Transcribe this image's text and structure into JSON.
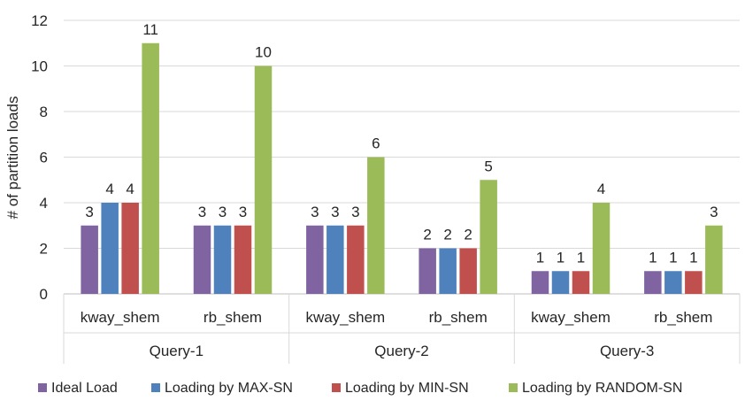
{
  "chart_data": {
    "type": "bar",
    "title": "",
    "ylabel": "# of partition loads",
    "xlabel": "",
    "ylim": [
      0,
      12
    ],
    "yticks": [
      0,
      2,
      4,
      6,
      8,
      10,
      12
    ],
    "grid": true,
    "legend_position": "bottom",
    "groups": [
      {
        "name": "Query-1",
        "categories": [
          "kway_shem",
          "rb_shem"
        ]
      },
      {
        "name": "Query-2",
        "categories": [
          "kway_shem",
          "rb_shem"
        ]
      },
      {
        "name": "Query-3",
        "categories": [
          "kway_shem",
          "rb_shem"
        ]
      }
    ],
    "series": [
      {
        "name": "Ideal Load",
        "color": "#8064A2",
        "values": [
          3,
          3,
          3,
          2,
          1,
          1
        ]
      },
      {
        "name": "Loading by MAX-SN",
        "color": "#4F81BD",
        "values": [
          4,
          3,
          3,
          2,
          1,
          1
        ]
      },
      {
        "name": "Loading by MIN-SN",
        "color": "#C0504D",
        "values": [
          4,
          3,
          3,
          2,
          1,
          1
        ]
      },
      {
        "name": "Loading by RANDOM-SN",
        "color": "#9BBB59",
        "values": [
          11,
          10,
          6,
          5,
          4,
          3
        ]
      }
    ]
  }
}
